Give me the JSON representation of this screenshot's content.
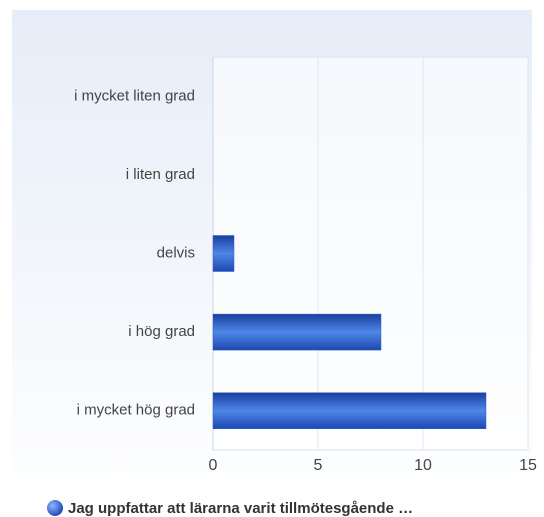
{
  "chart_data": {
    "type": "hbar",
    "categories": [
      "i mycket liten grad",
      "i liten grad",
      "delvis",
      "i hög grad",
      "i mycket hög grad"
    ],
    "series": [
      {
        "name": "Jag uppfattar att lärarna varit tillmötesgående …",
        "color": "#2a5fc8",
        "values": [
          0,
          0,
          1,
          8,
          13
        ]
      }
    ],
    "xlim": [
      0,
      15
    ],
    "xticks": [
      0,
      5,
      10,
      15
    ],
    "grid": true,
    "legend": "bottom"
  }
}
